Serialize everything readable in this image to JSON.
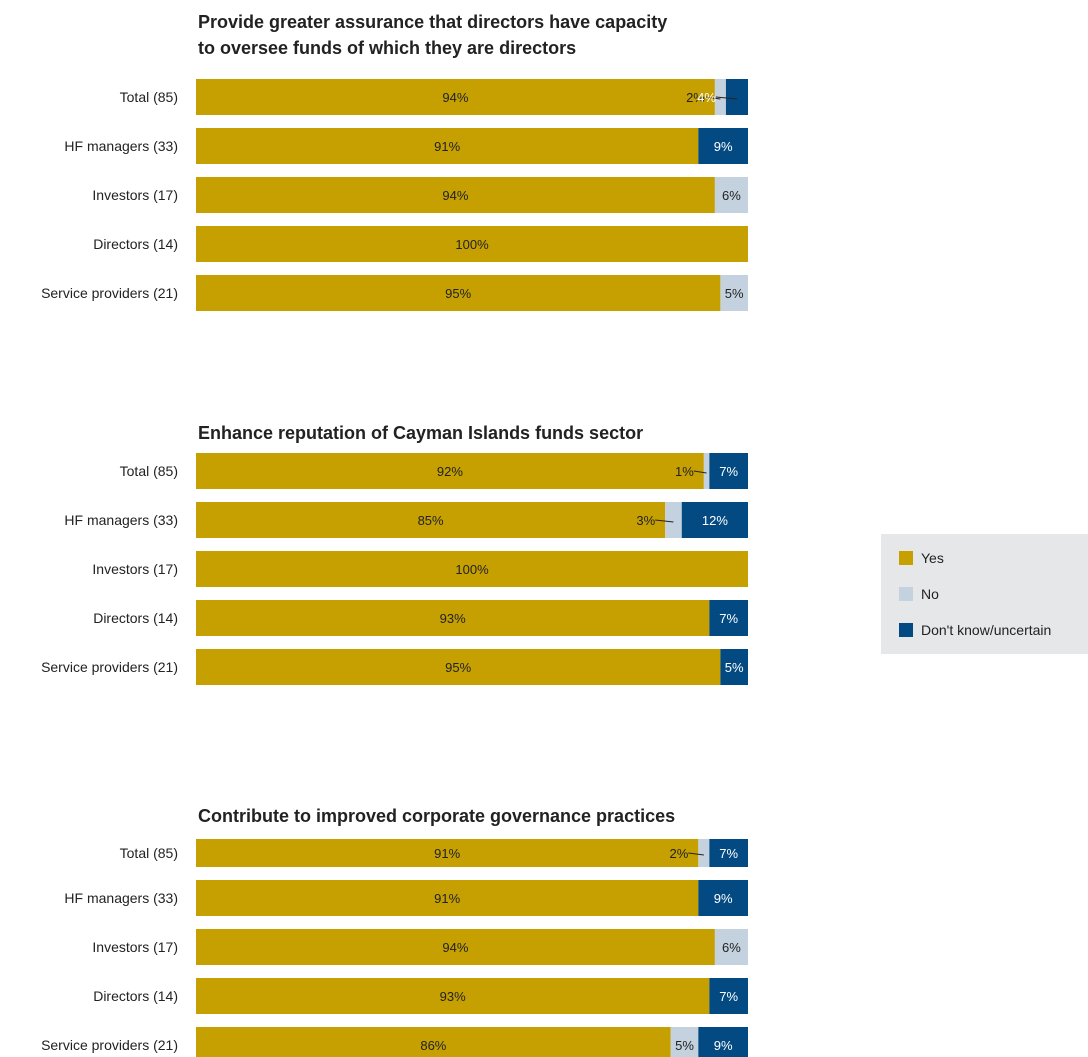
{
  "chart_data": [
    {
      "type": "bar",
      "orientation": "horizontal",
      "stacked": true,
      "title_lines": [
        "Provide greater assurance that directors have capacity",
        "to oversee funds of which they are directors"
      ],
      "categories": [
        "Total (85)",
        "HF managers (33)",
        "Investors (17)",
        "Directors (14)",
        "Service providers (21)"
      ],
      "series": [
        {
          "name": "Yes",
          "values": [
            94,
            91,
            94,
            100,
            95
          ]
        },
        {
          "name": "No",
          "values": [
            2,
            0,
            6,
            0,
            5
          ]
        },
        {
          "name": "Don't know/uncertain",
          "values": [
            4,
            9,
            0,
            0,
            0
          ]
        }
      ],
      "labels": [
        [
          "94%",
          "2%",
          "4%"
        ],
        [
          "91%",
          "",
          "9%"
        ],
        [
          "94%",
          "6%",
          ""
        ],
        [
          "100%",
          "",
          ""
        ],
        [
          "95%",
          "5%",
          ""
        ]
      ]
    },
    {
      "type": "bar",
      "orientation": "horizontal",
      "stacked": true,
      "title_lines": [
        "Enhance reputation of Cayman Islands funds sector"
      ],
      "categories": [
        "Total (85)",
        "HF managers (33)",
        "Investors (17)",
        "Directors (14)",
        "Service providers (21)"
      ],
      "series": [
        {
          "name": "Yes",
          "values": [
            92,
            85,
            100,
            93,
            95
          ]
        },
        {
          "name": "No",
          "values": [
            1,
            3,
            0,
            0,
            0
          ]
        },
        {
          "name": "Don't know/uncertain",
          "values": [
            7,
            12,
            0,
            7,
            5
          ]
        }
      ],
      "labels": [
        [
          "92%",
          "1%",
          "7%"
        ],
        [
          "85%",
          "3%",
          "12%"
        ],
        [
          "100%",
          "",
          ""
        ],
        [
          "93%",
          "",
          "7%"
        ],
        [
          "95%",
          "",
          "5%"
        ]
      ]
    },
    {
      "type": "bar",
      "orientation": "horizontal",
      "stacked": true,
      "title_lines": [
        "Contribute to improved corporate governance practices"
      ],
      "categories": [
        "Total (85)",
        "HF managers (33)",
        "Investors (17)",
        "Directors (14)",
        "Service providers (21)"
      ],
      "series": [
        {
          "name": "Yes",
          "values": [
            91,
            91,
            94,
            93,
            86
          ]
        },
        {
          "name": "No",
          "values": [
            2,
            0,
            6,
            0,
            5
          ]
        },
        {
          "name": "Don't know/uncertain",
          "values": [
            7,
            9,
            0,
            7,
            9
          ]
        }
      ],
      "labels": [
        [
          "91%",
          "2%",
          "7%"
        ],
        [
          "91%",
          "",
          "9%"
        ],
        [
          "94%",
          "6%",
          ""
        ],
        [
          "93%",
          "",
          "7%"
        ],
        [
          "86%",
          "5%",
          "9%"
        ]
      ]
    }
  ],
  "legend": {
    "position": "right",
    "items": [
      {
        "label": "Yes",
        "color": "#c5a000"
      },
      {
        "label": "No",
        "color": "#c4d2df"
      },
      {
        "label": "Don't know/uncertain",
        "color": "#044a82"
      }
    ]
  }
}
